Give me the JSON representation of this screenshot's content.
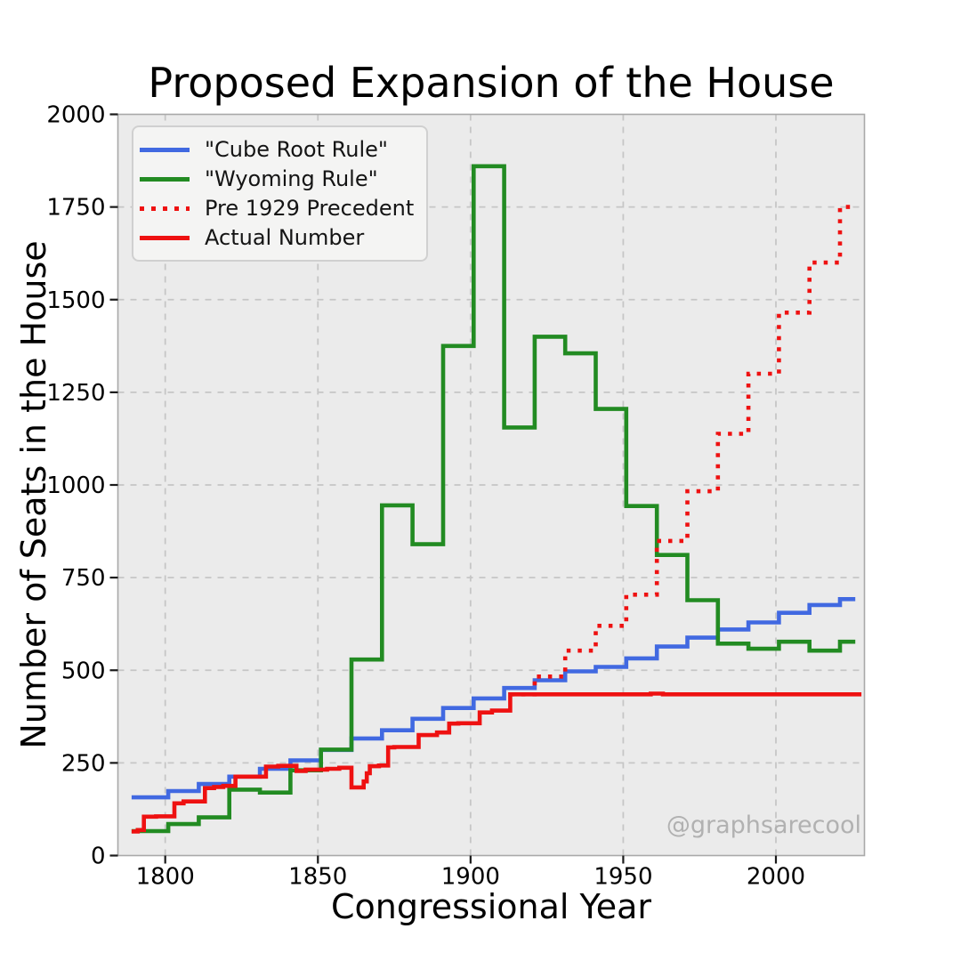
{
  "watermark": "@graphsarecool",
  "chart_data": {
    "type": "line",
    "title": "Proposed Expansion of the House",
    "xlabel": "Congressional Year",
    "ylabel": "Number of Seats in the House",
    "xlim": [
      1784.5,
      2029
    ],
    "ylim": [
      0,
      2000
    ],
    "xticks": [
      1800,
      1850,
      1900,
      1950,
      2000
    ],
    "yticks": [
      0,
      250,
      500,
      750,
      1000,
      1250,
      1500,
      1750,
      2000
    ],
    "grid": true,
    "grid_style": "dashed",
    "legend_position": "upper left",
    "step": "post",
    "plot_bg": "#ebebeb",
    "grid_color": "#c6c6c6",
    "spine_color": "#a9a9a9",
    "tick_color": "#1a1a1a",
    "series": [
      {
        "name": "\"Cube Root Rule\"",
        "color": "#4169E1",
        "style": "solid",
        "points": [
          [
            1789,
            157
          ],
          [
            1801,
            174
          ],
          [
            1811,
            193
          ],
          [
            1821,
            213
          ],
          [
            1831,
            234
          ],
          [
            1841,
            257
          ],
          [
            1851,
            285
          ],
          [
            1861,
            316
          ],
          [
            1871,
            338
          ],
          [
            1881,
            369
          ],
          [
            1891,
            398
          ],
          [
            1901,
            424
          ],
          [
            1911,
            452
          ],
          [
            1921,
            473
          ],
          [
            1931,
            497
          ],
          [
            1941,
            509
          ],
          [
            1951,
            532
          ],
          [
            1961,
            564
          ],
          [
            1971,
            588
          ],
          [
            1981,
            610
          ],
          [
            1991,
            629
          ],
          [
            2001,
            655
          ],
          [
            2011,
            676
          ],
          [
            2021,
            692
          ],
          [
            2026,
            692
          ]
        ]
      },
      {
        "name": "\"Wyoming Rule\"",
        "color": "#228B22",
        "style": "solid",
        "points": [
          [
            1789,
            66
          ],
          [
            1801,
            85
          ],
          [
            1811,
            103
          ],
          [
            1821,
            178
          ],
          [
            1831,
            170
          ],
          [
            1841,
            230
          ],
          [
            1851,
            286
          ],
          [
            1861,
            529
          ],
          [
            1871,
            945
          ],
          [
            1881,
            840
          ],
          [
            1891,
            1375
          ],
          [
            1901,
            1860
          ],
          [
            1911,
            1155
          ],
          [
            1921,
            1400
          ],
          [
            1931,
            1355
          ],
          [
            1941,
            1205
          ],
          [
            1951,
            943
          ],
          [
            1961,
            811
          ],
          [
            1971,
            689
          ],
          [
            1981,
            572
          ],
          [
            1991,
            558
          ],
          [
            2001,
            577
          ],
          [
            2011,
            553
          ],
          [
            2021,
            577
          ],
          [
            2026,
            577
          ]
        ]
      },
      {
        "name": "Pre 1929 Precedent",
        "color": "#ee1111",
        "style": "dotted",
        "points": [
          [
            1913,
            435
          ],
          [
            1921,
            483
          ],
          [
            1931,
            553
          ],
          [
            1941,
            620
          ],
          [
            1951,
            704
          ],
          [
            1961,
            849
          ],
          [
            1971,
            983
          ],
          [
            1981,
            1138
          ],
          [
            1991,
            1300
          ],
          [
            2001,
            1465
          ],
          [
            2011,
            1600
          ],
          [
            2021,
            1750
          ],
          [
            2025.5,
            1750
          ]
        ]
      },
      {
        "name": "Actual Number",
        "color": "#ee1111",
        "style": "solid",
        "points": [
          [
            1789,
            65
          ],
          [
            1791,
            69
          ],
          [
            1793,
            105
          ],
          [
            1797,
            106
          ],
          [
            1803,
            141
          ],
          [
            1806,
            146
          ],
          [
            1813,
            182
          ],
          [
            1816,
            185
          ],
          [
            1819,
            188
          ],
          [
            1823,
            213
          ],
          [
            1833,
            240
          ],
          [
            1837,
            242
          ],
          [
            1843,
            228
          ],
          [
            1846,
            232
          ],
          [
            1853,
            234
          ],
          [
            1857,
            237
          ],
          [
            1861,
            184
          ],
          [
            1865,
            200
          ],
          [
            1866,
            222
          ],
          [
            1867,
            241
          ],
          [
            1870,
            243
          ],
          [
            1873,
            292
          ],
          [
            1875,
            293
          ],
          [
            1883,
            325
          ],
          [
            1889,
            332
          ],
          [
            1893,
            356
          ],
          [
            1896,
            357
          ],
          [
            1903,
            386
          ],
          [
            1907,
            391
          ],
          [
            1913,
            435
          ],
          [
            1959,
            437
          ],
          [
            1963,
            435
          ],
          [
            2028,
            435
          ]
        ]
      }
    ]
  }
}
